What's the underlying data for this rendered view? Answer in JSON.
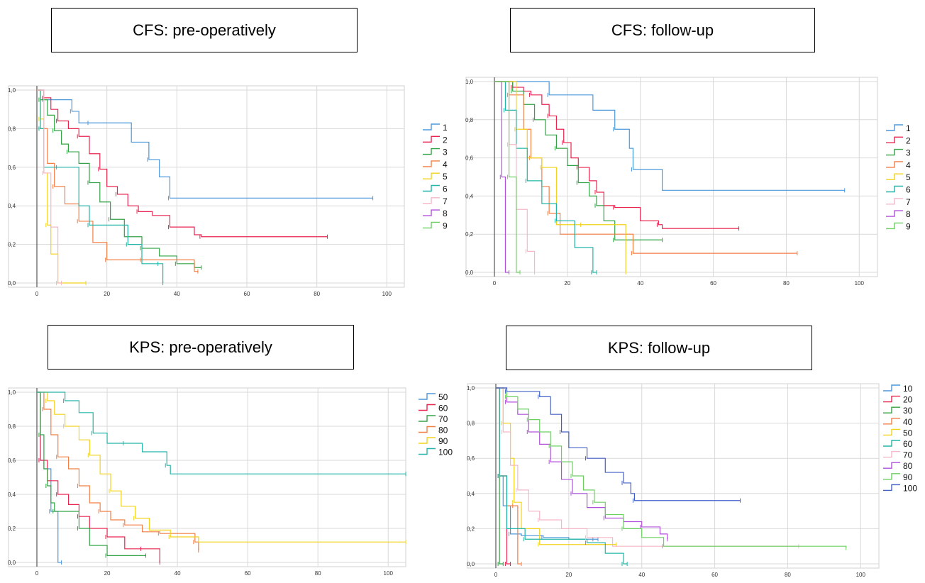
{
  "panels": [
    {
      "title": "CFS: pre-operatively",
      "chart_data": {
        "type": "line",
        "subtype": "kaplan-meier",
        "xlim": [
          0,
          105
        ],
        "ylim": [
          0,
          1
        ],
        "xticks": [
          "0",
          "20",
          "40",
          "60",
          "80",
          "100"
        ],
        "yticks": [
          "0,0",
          "0,2",
          "0,4",
          "0,6",
          "0,8",
          "1,0"
        ],
        "grid": true,
        "legend_position": "right",
        "series": [
          {
            "name": "1",
            "color": "#4c98dc",
            "x": [
              0,
              2,
              4,
              10,
              12,
              15,
              27,
              32,
              35,
              38,
              96
            ],
            "y": [
              1,
              0.95,
              0.95,
              0.89,
              0.83,
              0.83,
              0.73,
              0.64,
              0.55,
              0.44,
              0.44
            ]
          },
          {
            "name": "2",
            "color": "#e8254f",
            "x": [
              0,
              2,
              4,
              6,
              9,
              12,
              15,
              18,
              20,
              23,
              26,
              29,
              33,
              38,
              45,
              47,
              83
            ],
            "y": [
              1,
              0.96,
              0.9,
              0.84,
              0.8,
              0.76,
              0.67,
              0.59,
              0.5,
              0.46,
              0.4,
              0.37,
              0.35,
              0.29,
              0.25,
              0.24,
              0.24
            ]
          },
          {
            "name": "3",
            "color": "#33a345",
            "x": [
              0,
              1,
              3,
              5,
              7,
              9,
              12,
              15,
              18,
              21,
              25,
              30,
              35,
              40,
              45,
              47
            ],
            "y": [
              1,
              0.95,
              0.87,
              0.79,
              0.72,
              0.68,
              0.62,
              0.52,
              0.42,
              0.33,
              0.24,
              0.18,
              0.14,
              0.1,
              0.08,
              0.08
            ]
          },
          {
            "name": "4",
            "color": "#f27f45",
            "x": [
              0,
              1,
              3,
              5,
              8,
              12,
              16,
              20,
              25,
              30,
              45,
              46
            ],
            "y": [
              1,
              0.8,
              0.62,
              0.5,
              0.41,
              0.32,
              0.21,
              0.12,
              0.12,
              0.12,
              0.06,
              0.06
            ]
          },
          {
            "name": "5",
            "color": "#f2d21d",
            "x": [
              0,
              1,
              2,
              3,
              4,
              6,
              14
            ],
            "y": [
              1,
              0.85,
              0.57,
              0.3,
              0.15,
              0,
              0
            ]
          },
          {
            "name": "6",
            "color": "#22b5a8",
            "x": [
              0,
              1,
              2,
              6,
              12,
              15,
              19,
              26,
              30,
              35,
              36
            ],
            "y": [
              1,
              0.8,
              0.6,
              0.6,
              0.4,
              0.3,
              0.3,
              0.2,
              0.1,
              0.1,
              0
            ]
          },
          {
            "name": "7",
            "color": "#f6b7c7",
            "x": [
              0,
              2,
              4,
              6,
              7
            ],
            "y": [
              1,
              0.57,
              0.29,
              0,
              0
            ]
          },
          {
            "name": "8",
            "color": "#b050db",
            "x": [],
            "y": []
          },
          {
            "name": "9",
            "color": "#6bd060",
            "x": [],
            "y": []
          }
        ]
      }
    },
    {
      "title": "CFS: follow-up",
      "chart_data": {
        "type": "line",
        "subtype": "kaplan-meier",
        "xlim": [
          0,
          105
        ],
        "ylim": [
          0,
          1
        ],
        "xticks": [
          "0",
          "20",
          "40",
          "60",
          "80",
          "100"
        ],
        "yticks": [
          "0,0",
          "0,2",
          "0,4",
          "0,6",
          "0,8",
          "1,0"
        ],
        "grid": true,
        "legend_position": "right",
        "series": [
          {
            "name": "1",
            "color": "#4c98dc",
            "x": [
              0,
              15,
              27,
              33,
              37,
              38,
              46,
              96
            ],
            "y": [
              1,
              0.93,
              0.85,
              0.75,
              0.65,
              0.54,
              0.43,
              0.43
            ]
          },
          {
            "name": "2",
            "color": "#e8254f",
            "x": [
              0,
              5,
              8,
              10,
              13,
              15,
              17,
              19,
              21,
              23,
              26,
              28,
              30,
              33,
              40,
              45,
              46,
              67
            ],
            "y": [
              1,
              0.97,
              0.95,
              0.93,
              0.88,
              0.82,
              0.75,
              0.68,
              0.6,
              0.55,
              0.48,
              0.42,
              0.35,
              0.34,
              0.27,
              0.25,
              0.23,
              0.23
            ]
          },
          {
            "name": "3",
            "color": "#33a345",
            "x": [
              0,
              5,
              8,
              11,
              14,
              17,
              20,
              23,
              26,
              28,
              30,
              33,
              46
            ],
            "y": [
              1,
              0.95,
              0.88,
              0.8,
              0.72,
              0.65,
              0.56,
              0.47,
              0.4,
              0.35,
              0.27,
              0.17,
              0.17
            ]
          },
          {
            "name": "4",
            "color": "#f27f45",
            "x": [
              0,
              4,
              8,
              10,
              13,
              15,
              18,
              38,
              83
            ],
            "y": [
              1,
              0.93,
              0.75,
              0.6,
              0.45,
              0.31,
              0.2,
              0.1,
              0.1
            ]
          },
          {
            "name": "5",
            "color": "#f2d21d",
            "x": [
              0,
              6,
              9,
              13,
              17,
              24,
              36
            ],
            "y": [
              1,
              0.75,
              0.6,
              0.55,
              0.25,
              0.25,
              0
            ]
          },
          {
            "name": "6",
            "color": "#22b5a8",
            "x": [
              0,
              3,
              6,
              9,
              13,
              17,
              22,
              27,
              28
            ],
            "y": [
              1,
              0.85,
              0.65,
              0.48,
              0.36,
              0.27,
              0.13,
              0,
              0
            ]
          },
          {
            "name": "7",
            "color": "#f6b7c7",
            "x": [
              0,
              4,
              6,
              9,
              11
            ],
            "y": [
              1,
              0.67,
              0.33,
              0.11,
              0
            ]
          },
          {
            "name": "8",
            "color": "#b050db",
            "x": [
              0,
              2,
              3,
              4
            ],
            "y": [
              1,
              0.5,
              0,
              0
            ]
          },
          {
            "name": "9",
            "color": "#6bd060",
            "x": [
              0,
              4,
              6,
              7
            ],
            "y": [
              1,
              0.5,
              0,
              0
            ]
          }
        ]
      }
    },
    {
      "title": "KPS: pre-operatively",
      "chart_data": {
        "type": "line",
        "subtype": "kaplan-meier",
        "xlim": [
          0,
          105
        ],
        "ylim": [
          0,
          1
        ],
        "xticks": [
          "0",
          "20",
          "40",
          "60",
          "80",
          "100"
        ],
        "yticks": [
          "0,0",
          "0,2",
          "0,4",
          "0,6",
          "0,8",
          "1,0"
        ],
        "grid": true,
        "legend_position": "right",
        "series": [
          {
            "name": "50",
            "color": "#4c98dc",
            "x": [
              0,
              1,
              2,
              4,
              6,
              7
            ],
            "y": [
              1,
              0.6,
              0.55,
              0.3,
              0,
              0
            ]
          },
          {
            "name": "60",
            "color": "#e8254f",
            "x": [
              0,
              1,
              3,
              6,
              9,
              12,
              15,
              20,
              25,
              30,
              35
            ],
            "y": [
              1,
              0.6,
              0.48,
              0.4,
              0.34,
              0.27,
              0.2,
              0.15,
              0.08,
              0.08,
              0
            ]
          },
          {
            "name": "70",
            "color": "#33a345",
            "x": [
              0,
              1,
              2,
              3,
              4,
              5,
              7,
              12,
              15,
              20,
              31
            ],
            "y": [
              1,
              0.75,
              0.55,
              0.45,
              0.35,
              0.3,
              0.3,
              0.2,
              0.1,
              0.04,
              0.04
            ]
          },
          {
            "name": "80",
            "color": "#f27f45",
            "x": [
              0,
              2,
              4,
              6,
              9,
              12,
              15,
              18,
              21,
              25,
              30,
              35,
              40,
              45,
              46
            ],
            "y": [
              1,
              0.9,
              0.75,
              0.62,
              0.55,
              0.45,
              0.35,
              0.3,
              0.25,
              0.22,
              0.18,
              0.17,
              0.17,
              0.12,
              0.07
            ]
          },
          {
            "name": "90",
            "color": "#f2d21d",
            "x": [
              0,
              3,
              5,
              8,
              12,
              15,
              18,
              21,
              24,
              28,
              32,
              38,
              46,
              105
            ],
            "y": [
              1,
              0.95,
              0.87,
              0.8,
              0.72,
              0.63,
              0.52,
              0.42,
              0.33,
              0.26,
              0.19,
              0.15,
              0.12,
              0.12
            ]
          },
          {
            "name": "100",
            "color": "#22b5a8",
            "x": [
              0,
              8,
              12,
              16,
              20,
              25,
              30,
              37,
              38,
              105
            ],
            "y": [
              1,
              0.95,
              0.88,
              0.76,
              0.7,
              0.7,
              0.65,
              0.57,
              0.52,
              0.52
            ]
          }
        ]
      }
    },
    {
      "title": "KPS: follow-up",
      "chart_data": {
        "type": "line",
        "subtype": "kaplan-meier",
        "xlim": [
          0,
          105
        ],
        "ylim": [
          0,
          1
        ],
        "xticks": [
          "0",
          "20",
          "40",
          "60",
          "80",
          "100"
        ],
        "yticks": [
          "0,0",
          "0,2",
          "0,4",
          "0,6",
          "0,8",
          "1,0"
        ],
        "grid": true,
        "legend_position": "right",
        "series": [
          {
            "name": "10",
            "color": "#4c98dc",
            "x": [
              0,
              1,
              2,
              4,
              7,
              13,
              20,
              27,
              28
            ],
            "y": [
              1,
              0.5,
              0.33,
              0.17,
              0.16,
              0.15,
              0.14,
              0.14,
              0.14
            ]
          },
          {
            "name": "20",
            "color": "#e8254f",
            "x": [
              0,
              1,
              2,
              3,
              4
            ],
            "y": [
              1,
              0.5,
              0.5,
              0,
              0
            ]
          },
          {
            "name": "30",
            "color": "#33a345",
            "x": [
              0,
              1,
              2
            ],
            "y": [
              1,
              0,
              0
            ]
          },
          {
            "name": "40",
            "color": "#f27f45",
            "x": [
              0,
              1,
              3,
              5,
              6,
              7
            ],
            "y": [
              1,
              0.5,
              0.33,
              0.33,
              0,
              0
            ]
          },
          {
            "name": "50",
            "color": "#f2d21d",
            "x": [
              0,
              2,
              4,
              5,
              7,
              12,
              20,
              33
            ],
            "y": [
              1,
              0.8,
              0.6,
              0.35,
              0.2,
              0.11,
              0.11,
              0.11
            ]
          },
          {
            "name": "60",
            "color": "#22b5a8",
            "x": [
              0,
              1,
              3,
              8,
              15,
              25,
              30,
              35,
              36
            ],
            "y": [
              1,
              0.5,
              0.2,
              0.14,
              0.14,
              0.12,
              0.06,
              0,
              0
            ]
          },
          {
            "name": "70",
            "color": "#f6b7c7",
            "x": [
              0,
              2,
              4,
              6,
              9,
              12,
              18,
              25,
              32,
              83
            ],
            "y": [
              1,
              0.75,
              0.56,
              0.42,
              0.3,
              0.25,
              0.2,
              0.15,
              0.1,
              0.1
            ]
          },
          {
            "name": "80",
            "color": "#b050db",
            "x": [
              0,
              3,
              6,
              9,
              12,
              15,
              18,
              21,
              25,
              30,
              35,
              40,
              45,
              47
            ],
            "y": [
              1,
              0.92,
              0.85,
              0.75,
              0.68,
              0.58,
              0.48,
              0.4,
              0.32,
              0.26,
              0.24,
              0.21,
              0.17,
              0.14
            ]
          },
          {
            "name": "90",
            "color": "#6bd060",
            "x": [
              0,
              3,
              6,
              9,
              12,
              15,
              18,
              21,
              24,
              27,
              30,
              35,
              40,
              46,
              96
            ],
            "y": [
              1,
              0.95,
              0.88,
              0.82,
              0.75,
              0.67,
              0.58,
              0.5,
              0.42,
              0.35,
              0.28,
              0.2,
              0.15,
              0.1,
              0.09
            ]
          },
          {
            "name": "100",
            "color": "#4160c6",
            "x": [
              0,
              3,
              8,
              12,
              15,
              18,
              20,
              25,
              30,
              35,
              37,
              38,
              40,
              67
            ],
            "y": [
              1,
              0.98,
              0.98,
              0.95,
              0.85,
              0.75,
              0.66,
              0.6,
              0.52,
              0.46,
              0.4,
              0.36,
              0.36,
              0.36
            ]
          }
        ]
      }
    }
  ]
}
